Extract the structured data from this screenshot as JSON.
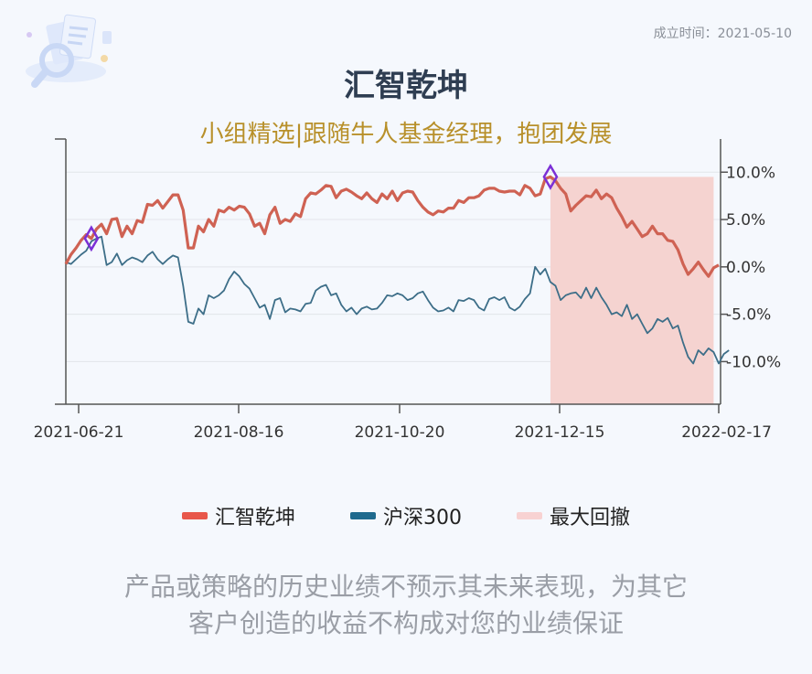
{
  "header": {
    "established": "成立时间：2021-05-10",
    "title": "汇智乾坤",
    "subtitle": "小组精选|跟随牛人基金经理，抱团发展"
  },
  "colors": {
    "fund": "#cf6253",
    "index": "#3d6e88",
    "drawdown": "#f5d3d0",
    "marker": "#7b2fd6",
    "title": "#2f3e52",
    "subtitle": "#b8902a"
  },
  "legend": [
    {
      "label": "汇智乾坤",
      "color": "#e8574a"
    },
    {
      "label": "沪深300",
      "color": "#1f6a8e"
    },
    {
      "label": "最大回撤",
      "color": "#f8d2d2"
    }
  ],
  "disclaimer": {
    "line1": "产品或策略的历史业绩不预示其未来表现，为其它",
    "line2": "客户创造的收益不构成对您的业绩保证"
  },
  "chart_data": {
    "type": "line",
    "x_ticks": [
      "2021-06-21",
      "2021-08-16",
      "2021-10-20",
      "2021-12-15",
      "2022-02-17"
    ],
    "y_ticks": [
      "10.0%",
      "5.0%",
      "0.0%",
      "-5.0%",
      "-10.0%"
    ],
    "ylim": [
      -14.5,
      13.5
    ],
    "grid": true,
    "legend_position": "bottom",
    "series": [
      {
        "name": "汇智乾坤",
        "values": [
          0.3,
          1.3,
          2.0,
          2.8,
          3.4,
          3.0,
          4.0,
          4.5,
          3.5,
          5.0,
          5.1,
          3.2,
          4.3,
          3.5,
          4.9,
          4.7,
          6.6,
          6.5,
          7.0,
          6.2,
          6.9,
          7.6,
          7.6,
          6.0,
          2.0,
          2.0,
          4.3,
          3.7,
          5.0,
          4.3,
          6.0,
          5.8,
          6.3,
          6.0,
          6.4,
          6.3,
          5.6,
          4.3,
          4.6,
          3.5,
          5.5,
          6.3,
          4.6,
          5.0,
          4.8,
          5.6,
          5.3,
          7.2,
          7.8,
          7.7,
          8.1,
          8.6,
          8.5,
          7.3,
          8.0,
          8.2,
          7.9,
          7.5,
          7.2,
          7.8,
          7.2,
          6.8,
          7.7,
          7.2,
          8.0,
          7.0,
          7.8,
          8.0,
          7.9,
          7.0,
          6.3,
          5.8,
          5.5,
          5.9,
          5.8,
          6.2,
          6.2,
          7.0,
          6.8,
          7.3,
          7.3,
          7.5,
          8.1,
          8.3,
          8.3,
          8.0,
          7.9,
          8.0,
          8.0,
          7.6,
          8.6,
          8.3,
          7.5,
          7.7,
          9.3,
          9.5,
          9.1,
          8.3,
          7.7,
          5.9,
          6.5,
          7.0,
          7.5,
          7.4,
          8.1,
          7.2,
          7.7,
          7.3,
          6.2,
          5.3,
          4.2,
          4.8,
          4.0,
          3.2,
          3.5,
          4.3,
          3.5,
          3.5,
          2.8,
          2.7,
          1.8,
          0.3,
          -0.8,
          -0.2,
          0.5,
          -0.3,
          -1.0,
          -0.1,
          0.2
        ]
      },
      {
        "name": "沪深300",
        "values": [
          0.5,
          0.3,
          0.8,
          1.3,
          1.7,
          2.7,
          3.0,
          3.2,
          0.2,
          0.5,
          1.4,
          0.2,
          0.7,
          1.0,
          0.8,
          0.5,
          1.2,
          1.6,
          0.8,
          0.3,
          0.8,
          1.2,
          1.0,
          -2.0,
          -5.8,
          -6.0,
          -4.4,
          -5.0,
          -3.0,
          -3.3,
          -3.0,
          -2.5,
          -1.3,
          -0.5,
          -1.0,
          -1.8,
          -2.3,
          -3.3,
          -4.3,
          -4.0,
          -5.5,
          -3.5,
          -3.3,
          -4.8,
          -4.4,
          -4.5,
          -4.7,
          -3.9,
          -3.8,
          -2.5,
          -2.1,
          -1.9,
          -3.0,
          -2.8,
          -4.0,
          -4.7,
          -4.3,
          -5.0,
          -4.4,
          -4.2,
          -4.5,
          -4.4,
          -3.8,
          -3.0,
          -3.1,
          -2.8,
          -3.0,
          -3.5,
          -3.3,
          -2.8,
          -2.6,
          -3.5,
          -4.3,
          -4.7,
          -4.6,
          -4.3,
          -4.7,
          -3.5,
          -3.6,
          -3.3,
          -3.5,
          -4.3,
          -4.6,
          -3.4,
          -3.2,
          -3.5,
          -3.2,
          -4.3,
          -4.6,
          -4.2,
          -3.4,
          -2.8,
          0.0,
          -0.8,
          -0.2,
          -1.6,
          -2.0,
          -3.5,
          -3.0,
          -2.8,
          -2.7,
          -3.3,
          -2.2,
          -3.3,
          -2.2,
          -3.2,
          -4.0,
          -5.0,
          -4.8,
          -5.2,
          -4.0,
          -5.5,
          -5.0,
          -6.0,
          -7.0,
          -6.5,
          -5.5,
          -5.8,
          -5.4,
          -6.5,
          -6.2,
          -8.0,
          -9.5,
          -10.2,
          -8.8,
          -9.3,
          -8.6,
          -9.0,
          -10.2,
          -9.2,
          -8.8
        ]
      }
    ],
    "markers": [
      {
        "series": "汇智乾坤",
        "index": 5
      },
      {
        "series": "汇智乾坤",
        "index": 95
      }
    ],
    "drawdown_range": {
      "start_index": 95,
      "end_index": 127
    }
  }
}
